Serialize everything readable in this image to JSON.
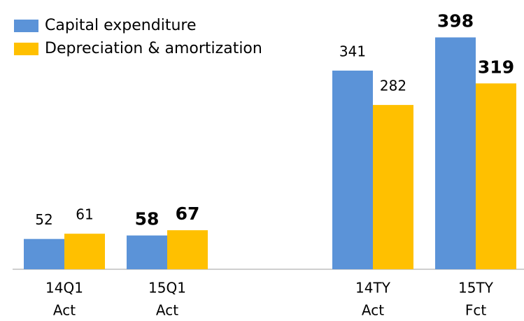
{
  "chart_data": {
    "type": "bar",
    "categories": [
      [
        "14Q1",
        "Act"
      ],
      [
        "15Q1",
        "Act"
      ],
      null,
      [
        "14TY",
        "Act"
      ],
      [
        "15TY",
        "Fct"
      ]
    ],
    "series": [
      {
        "name": "Capital expenditure",
        "color": "#5b93d8",
        "values": [
          52,
          58,
          null,
          341,
          398
        ]
      },
      {
        "name": "Depreciation & amortization",
        "color": "#ffc000",
        "values": [
          61,
          67,
          null,
          282,
          319
        ]
      }
    ],
    "bold": [
      false,
      true,
      false,
      false,
      true
    ]
  }
}
